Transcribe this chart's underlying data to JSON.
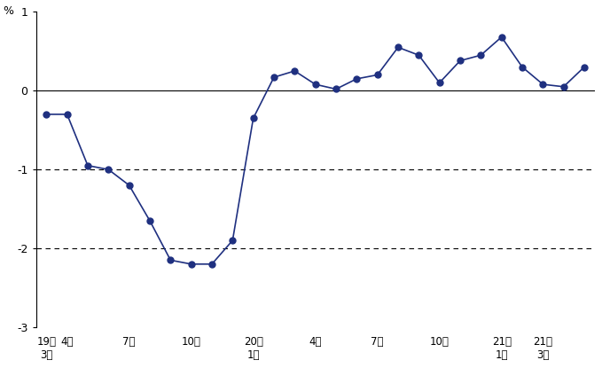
{
  "title": "",
  "ylabel": "%",
  "ylim": [
    -3,
    1
  ],
  "yticks": [
    -3,
    -2,
    -1,
    0,
    1
  ],
  "line_color": "#1f3080",
  "marker_color": "#1f3080",
  "background_color": "#ffffff",
  "data_x": [
    0,
    1,
    2,
    3,
    4,
    5,
    6,
    7,
    8,
    9,
    10,
    11,
    12,
    13,
    14,
    15,
    16,
    17,
    18,
    19,
    20,
    21,
    22,
    23,
    24,
    25,
    26
  ],
  "data_y": [
    -0.3,
    -0.3,
    -0.95,
    -1.0,
    -1.2,
    -1.65,
    -2.15,
    -2.2,
    -2.2,
    -1.9,
    -0.35,
    0.17,
    0.25,
    0.08,
    0.02,
    0.15,
    0.2,
    0.55,
    0.45,
    0.1,
    0.38,
    0.45,
    0.68,
    0.3,
    0.08,
    0.05,
    0.3
  ],
  "tick_positions": [
    0,
    1,
    4,
    7,
    10,
    13,
    16,
    19,
    22,
    24
  ],
  "tick_labels_line1": [
    "19年",
    "",
    "",
    "",
    "20年",
    "",
    "",
    "",
    "21年",
    "21年"
  ],
  "tick_labels_line2": [
    "3月",
    "4月",
    "7月",
    "10月",
    "1月",
    "4月",
    "7月",
    "10月",
    "1月",
    "3月"
  ]
}
